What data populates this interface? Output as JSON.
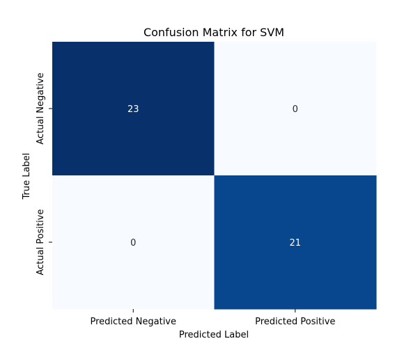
{
  "chart_data": {
    "type": "heatmap",
    "title": "Confusion Matrix for SVM",
    "xlabel": "Predicted Label",
    "ylabel": "True Label",
    "x_categories": [
      "Predicted Negative",
      "Predicted Positive"
    ],
    "y_categories": [
      "Actual Negative",
      "Actual Positive"
    ],
    "values": [
      [
        23,
        0
      ],
      [
        0,
        21
      ]
    ],
    "colormap": "Blues",
    "value_range": [
      0,
      23
    ],
    "colors": {
      "min": "#f7fbff",
      "max": "#08306b",
      "light_text": "#ffffff",
      "dark_text": "#262626"
    },
    "colorbar": false,
    "grid": false
  }
}
